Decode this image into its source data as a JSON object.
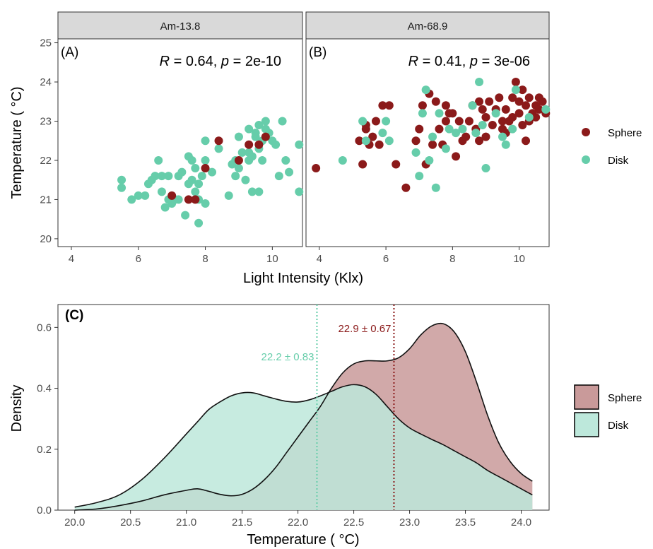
{
  "chart_data": [
    {
      "type": "scatter",
      "facet": "Am-13.8",
      "tag": "(A)",
      "stat": {
        "R": "0.64",
        "p": "2e-10"
      },
      "xlabel": "Light Intensity (Klx)",
      "ylabel": "Temperature ( °C)",
      "xlim": [
        3.6,
        10.9
      ],
      "ylim": [
        19.8,
        25.1
      ],
      "xticks": [
        4,
        6,
        8,
        10
      ],
      "yticks": [
        20,
        21,
        22,
        23,
        24,
        25
      ],
      "series": [
        {
          "name": "Sphere",
          "color": "#8b1a1a",
          "points": [
            [
              7.0,
              21.1
            ],
            [
              7.5,
              21.0
            ],
            [
              7.7,
              21.0
            ],
            [
              8.0,
              21.8
            ],
            [
              8.4,
              22.5
            ],
            [
              9.0,
              22.0
            ],
            [
              9.3,
              22.4
            ],
            [
              9.6,
              22.4
            ],
            [
              9.8,
              22.6
            ]
          ]
        },
        {
          "name": "Disk",
          "color": "#66cdaa",
          "points": [
            [
              5.5,
              21.5
            ],
            [
              5.5,
              21.3
            ],
            [
              5.8,
              21.0
            ],
            [
              6.0,
              21.1
            ],
            [
              6.2,
              21.1
            ],
            [
              6.3,
              21.4
            ],
            [
              6.4,
              21.5
            ],
            [
              6.5,
              21.6
            ],
            [
              6.6,
              22.0
            ],
            [
              6.7,
              21.2
            ],
            [
              6.7,
              21.6
            ],
            [
              6.8,
              20.8
            ],
            [
              6.9,
              21.0
            ],
            [
              6.9,
              21.6
            ],
            [
              7.0,
              20.9
            ],
            [
              7.1,
              21.0
            ],
            [
              7.2,
              21.6
            ],
            [
              7.2,
              21.0
            ],
            [
              7.3,
              21.7
            ],
            [
              7.4,
              20.6
            ],
            [
              7.5,
              21.4
            ],
            [
              7.5,
              22.1
            ],
            [
              7.6,
              21.5
            ],
            [
              7.6,
              22.0
            ],
            [
              7.7,
              21.8
            ],
            [
              7.7,
              21.2
            ],
            [
              7.8,
              21.4
            ],
            [
              7.8,
              20.4
            ],
            [
              7.8,
              21.0
            ],
            [
              7.9,
              21.6
            ],
            [
              8.0,
              22.0
            ],
            [
              8.0,
              22.5
            ],
            [
              8.0,
              20.9
            ],
            [
              8.2,
              21.7
            ],
            [
              8.4,
              22.3
            ],
            [
              8.7,
              21.1
            ],
            [
              8.8,
              21.9
            ],
            [
              8.9,
              21.6
            ],
            [
              8.9,
              22.0
            ],
            [
              9.0,
              22.6
            ],
            [
              9.0,
              21.8
            ],
            [
              9.1,
              22.2
            ],
            [
              9.2,
              21.5
            ],
            [
              9.3,
              22.0
            ],
            [
              9.3,
              22.2
            ],
            [
              9.3,
              22.8
            ],
            [
              9.4,
              21.2
            ],
            [
              9.4,
              22.1
            ],
            [
              9.5,
              22.6
            ],
            [
              9.5,
              22.7
            ],
            [
              9.6,
              22.3
            ],
            [
              9.6,
              22.9
            ],
            [
              9.6,
              21.2
            ],
            [
              9.7,
              22.5
            ],
            [
              9.7,
              22.0
            ],
            [
              9.8,
              23.0
            ],
            [
              9.8,
              22.8
            ],
            [
              9.9,
              22.7
            ],
            [
              10.0,
              22.5
            ],
            [
              10.1,
              22.4
            ],
            [
              10.2,
              21.6
            ],
            [
              10.3,
              23.0
            ],
            [
              10.4,
              22.0
            ],
            [
              10.5,
              21.7
            ],
            [
              10.8,
              22.4
            ],
            [
              10.8,
              21.2
            ]
          ]
        }
      ]
    },
    {
      "type": "scatter",
      "facet": "Am-68.9",
      "tag": "(B)",
      "stat": {
        "R": "0.41",
        "p": "3e-06"
      },
      "xlabel": "Light Intensity (Klx)",
      "ylabel": "Temperature ( °C)",
      "xlim": [
        3.6,
        10.9
      ],
      "ylim": [
        19.8,
        25.1
      ],
      "xticks": [
        4,
        6,
        8,
        10
      ],
      "yticks": [
        20,
        21,
        22,
        23,
        24,
        25
      ],
      "series": [
        {
          "name": "Sphere",
          "color": "#8b1a1a",
          "points": [
            [
              3.9,
              21.8
            ],
            [
              5.2,
              22.5
            ],
            [
              5.3,
              21.9
            ],
            [
              5.4,
              22.8
            ],
            [
              5.4,
              22.9
            ],
            [
              5.5,
              22.4
            ],
            [
              5.6,
              22.6
            ],
            [
              5.7,
              23.0
            ],
            [
              5.8,
              22.4
            ],
            [
              5.9,
              23.4
            ],
            [
              6.1,
              23.4
            ],
            [
              6.3,
              21.9
            ],
            [
              6.6,
              21.3
            ],
            [
              6.9,
              22.5
            ],
            [
              7.0,
              22.8
            ],
            [
              7.1,
              23.4
            ],
            [
              7.2,
              21.9
            ],
            [
              7.3,
              23.7
            ],
            [
              7.4,
              22.4
            ],
            [
              7.5,
              23.5
            ],
            [
              7.6,
              22.8
            ],
            [
              7.7,
              22.4
            ],
            [
              7.8,
              23.0
            ],
            [
              7.8,
              23.4
            ],
            [
              7.9,
              23.2
            ],
            [
              8.0,
              23.2
            ],
            [
              8.1,
              22.1
            ],
            [
              8.2,
              23.0
            ],
            [
              8.3,
              22.5
            ],
            [
              8.4,
              22.6
            ],
            [
              8.5,
              23.0
            ],
            [
              8.6,
              23.4
            ],
            [
              8.7,
              22.8
            ],
            [
              8.8,
              23.5
            ],
            [
              8.8,
              22.5
            ],
            [
              8.9,
              23.3
            ],
            [
              9.0,
              23.1
            ],
            [
              9.0,
              22.6
            ],
            [
              9.1,
              23.5
            ],
            [
              9.2,
              22.9
            ],
            [
              9.3,
              23.3
            ],
            [
              9.4,
              23.6
            ],
            [
              9.5,
              22.8
            ],
            [
              9.5,
              23.0
            ],
            [
              9.6,
              22.7
            ],
            [
              9.6,
              23.3
            ],
            [
              9.7,
              23.0
            ],
            [
              9.8,
              23.1
            ],
            [
              9.8,
              23.6
            ],
            [
              9.9,
              24.0
            ],
            [
              10.0,
              23.2
            ],
            [
              10.0,
              23.5
            ],
            [
              10.1,
              22.9
            ],
            [
              10.1,
              23.8
            ],
            [
              10.2,
              23.4
            ],
            [
              10.2,
              22.5
            ],
            [
              10.3,
              23.6
            ],
            [
              10.3,
              23.0
            ],
            [
              10.4,
              23.2
            ],
            [
              10.5,
              23.4
            ],
            [
              10.5,
              23.1
            ],
            [
              10.6,
              23.6
            ],
            [
              10.6,
              23.3
            ],
            [
              10.7,
              23.5
            ],
            [
              10.8,
              23.2
            ]
          ]
        },
        {
          "name": "Disk",
          "color": "#66cdaa",
          "points": [
            [
              4.7,
              22.0
            ],
            [
              5.3,
              23.0
            ],
            [
              5.4,
              22.5
            ],
            [
              5.9,
              22.7
            ],
            [
              6.0,
              23.0
            ],
            [
              6.1,
              22.5
            ],
            [
              6.9,
              22.2
            ],
            [
              7.0,
              21.6
            ],
            [
              7.1,
              23.2
            ],
            [
              7.2,
              23.8
            ],
            [
              7.3,
              22.0
            ],
            [
              7.4,
              22.6
            ],
            [
              7.5,
              21.3
            ],
            [
              7.6,
              23.2
            ],
            [
              7.8,
              22.3
            ],
            [
              7.9,
              22.8
            ],
            [
              8.1,
              22.7
            ],
            [
              8.3,
              22.8
            ],
            [
              8.6,
              23.4
            ],
            [
              8.7,
              22.7
            ],
            [
              8.8,
              24.0
            ],
            [
              8.9,
              22.9
            ],
            [
              9.0,
              21.8
            ],
            [
              9.3,
              23.2
            ],
            [
              9.5,
              22.6
            ],
            [
              9.6,
              22.4
            ],
            [
              9.8,
              22.8
            ],
            [
              9.9,
              23.8
            ],
            [
              10.3,
              23.1
            ],
            [
              10.8,
              23.3
            ]
          ]
        }
      ]
    },
    {
      "type": "area",
      "tag": "(C)",
      "xlabel": "Temperature ( °C)",
      "ylabel": "Density",
      "xlim": [
        19.85,
        24.25
      ],
      "ylim": [
        0,
        0.675
      ],
      "xticks": [
        "20.0",
        "20.5",
        "21.0",
        "21.5",
        "22.0",
        "22.5",
        "23.0",
        "23.5",
        "24.0"
      ],
      "yticks": [
        "0.0",
        "0.2",
        "0.4",
        "0.6"
      ],
      "x": [
        20.0,
        20.2,
        20.4,
        20.6,
        20.8,
        21.0,
        21.1,
        21.2,
        21.3,
        21.4,
        21.5,
        21.6,
        21.7,
        21.8,
        21.9,
        22.0,
        22.1,
        22.2,
        22.3,
        22.4,
        22.5,
        22.6,
        22.7,
        22.8,
        22.9,
        23.0,
        23.1,
        23.2,
        23.3,
        23.4,
        23.5,
        23.6,
        23.7,
        23.8,
        23.9,
        24.0,
        24.1
      ],
      "series": [
        {
          "name": "Sphere",
          "color": "#c99a9a",
          "mean_label": "22.9 ± 0.67",
          "mean": 22.86,
          "values": [
            0.0,
            0.004,
            0.015,
            0.03,
            0.05,
            0.065,
            0.07,
            0.062,
            0.052,
            0.047,
            0.052,
            0.07,
            0.1,
            0.14,
            0.19,
            0.24,
            0.29,
            0.34,
            0.4,
            0.45,
            0.48,
            0.49,
            0.49,
            0.49,
            0.5,
            0.53,
            0.575,
            0.605,
            0.612,
            0.585,
            0.52,
            0.42,
            0.31,
            0.22,
            0.16,
            0.12,
            0.095
          ]
        },
        {
          "name": "Disk",
          "color": "#bde8db",
          "mean_label": "22.2 ± 0.83",
          "mean": 22.17,
          "values": [
            0.01,
            0.025,
            0.05,
            0.1,
            0.17,
            0.25,
            0.29,
            0.33,
            0.355,
            0.375,
            0.385,
            0.385,
            0.375,
            0.365,
            0.357,
            0.355,
            0.362,
            0.375,
            0.39,
            0.405,
            0.412,
            0.405,
            0.38,
            0.34,
            0.3,
            0.27,
            0.25,
            0.232,
            0.215,
            0.195,
            0.175,
            0.155,
            0.13,
            0.11,
            0.09,
            0.07,
            0.05
          ]
        }
      ]
    }
  ],
  "legend": {
    "items": [
      {
        "label": "Sphere",
        "color": "#8b1a1a",
        "fill": "#c99a9a"
      },
      {
        "label": "Disk",
        "color": "#66cdaa",
        "fill": "#bde8db"
      }
    ]
  }
}
